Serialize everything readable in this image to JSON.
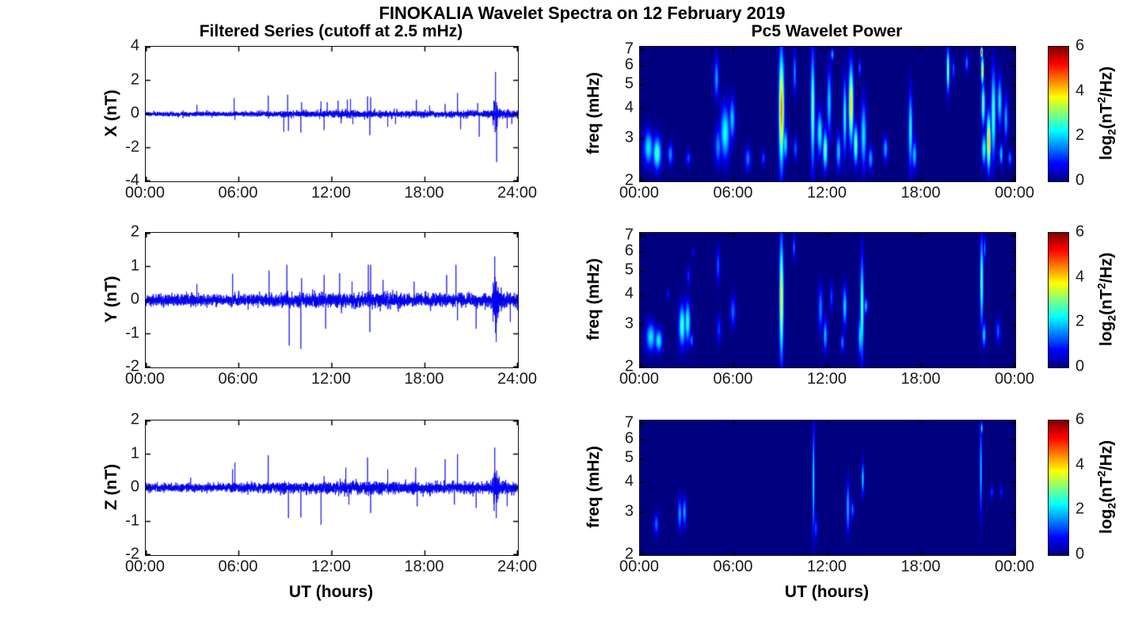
{
  "figure": {
    "title": "FINOKALIA Wavelet Spectra on 12 February 2019",
    "background": "#ffffff"
  },
  "left_column": {
    "title": "Filtered Series (cutoff at 2.5 mHz)",
    "xlabel": "UT (hours)",
    "x_tick_labels": [
      "00:00",
      "06:00",
      "12:00",
      "18:00",
      "24:00"
    ]
  },
  "right_column": {
    "title": "Pc5 Wavelet Power",
    "xlabel": "UT (hours)",
    "ylabel": "freq (mHz)",
    "x_tick_labels": [
      "00:00",
      "06:00",
      "12:00",
      "18:00",
      "00:00"
    ],
    "colorbar": {
      "ticks": [
        0,
        2,
        4,
        6
      ],
      "value_range": [
        0,
        6
      ],
      "label_parts": {
        "pre": "log",
        "sub": "2",
        "mid": "(nT",
        "sup": "2",
        "post": "/Hz)"
      }
    }
  },
  "chart_data": [
    {
      "type": "line",
      "panel": "X filtered series",
      "ylabel": "X (nT)",
      "ylim": [
        -4,
        4
      ],
      "y_ticks": [
        4,
        2,
        0,
        -2,
        -4
      ],
      "x_range_hours": [
        0,
        24
      ],
      "line_color": "#0000EE",
      "seed": 7,
      "noise_std": 0.07,
      "noise_envelope": [
        [
          0,
          0.9
        ],
        [
          4,
          0.95
        ],
        [
          7,
          1.0
        ],
        [
          9,
          1.2
        ],
        [
          11,
          1.3
        ],
        [
          13,
          1.5
        ],
        [
          15,
          1.45
        ],
        [
          17,
          1.2
        ],
        [
          19,
          1.2
        ],
        [
          21,
          1.3
        ],
        [
          22.3,
          1.5
        ],
        [
          22.45,
          6
        ],
        [
          22.6,
          7
        ],
        [
          22.75,
          2
        ],
        [
          23.2,
          1.5
        ],
        [
          24,
          1.5
        ]
      ],
      "spikes": [
        [
          3.3,
          0.55
        ],
        [
          5.7,
          0.95
        ],
        [
          5.75,
          -0.35
        ],
        [
          7.9,
          1.1
        ],
        [
          8.9,
          -1.05
        ],
        [
          9.15,
          1.15
        ],
        [
          9.2,
          -1.0
        ],
        [
          10.0,
          -1.1
        ],
        [
          10.05,
          0.7
        ],
        [
          11.3,
          0.75
        ],
        [
          11.5,
          -0.95
        ],
        [
          11.7,
          0.7
        ],
        [
          12.4,
          0.8
        ],
        [
          12.6,
          -0.55
        ],
        [
          13.0,
          0.85
        ],
        [
          13.2,
          0.9
        ],
        [
          13.35,
          -0.6
        ],
        [
          14.3,
          1.05
        ],
        [
          14.45,
          -1.25
        ],
        [
          14.5,
          1.0
        ],
        [
          15.6,
          -0.75
        ],
        [
          16.1,
          -0.6
        ],
        [
          17.45,
          0.85
        ],
        [
          18.3,
          0.5
        ],
        [
          19.3,
          0.6
        ],
        [
          20.1,
          1.25
        ],
        [
          20.3,
          -0.9
        ],
        [
          21.4,
          0.65
        ],
        [
          21.5,
          -1.35
        ],
        [
          22.55,
          2.5
        ],
        [
          22.62,
          -2.85
        ],
        [
          23.3,
          -0.85
        ],
        [
          23.6,
          -0.6
        ]
      ]
    },
    {
      "type": "line",
      "panel": "Y filtered series",
      "ylabel": "Y (nT)",
      "ylim": [
        -2,
        2
      ],
      "y_ticks": [
        2,
        1,
        0,
        -1,
        -2
      ],
      "x_range_hours": [
        0,
        24
      ],
      "line_color": "#0000EE",
      "seed": 11,
      "noise_std": 0.08,
      "noise_envelope": [
        [
          0,
          1
        ],
        [
          6,
          1
        ],
        [
          9,
          1.15
        ],
        [
          12,
          1.35
        ],
        [
          15,
          1.35
        ],
        [
          18,
          1.15
        ],
        [
          20,
          1.1
        ],
        [
          22.3,
          1.2
        ],
        [
          22.5,
          4
        ],
        [
          22.65,
          4.5
        ],
        [
          22.8,
          1.5
        ],
        [
          24,
          1.25
        ]
      ],
      "spikes": [
        [
          3.3,
          0.48
        ],
        [
          5.6,
          0.78
        ],
        [
          7.95,
          0.88
        ],
        [
          9.1,
          1.05
        ],
        [
          9.25,
          -1.35
        ],
        [
          10.0,
          -1.45
        ],
        [
          10.05,
          0.65
        ],
        [
          11.5,
          0.75
        ],
        [
          11.6,
          -0.85
        ],
        [
          12.5,
          0.8
        ],
        [
          13.3,
          0.55
        ],
        [
          14.35,
          1.05
        ],
        [
          14.45,
          -0.95
        ],
        [
          14.5,
          1.05
        ],
        [
          15.3,
          0.6
        ],
        [
          17.3,
          0.55
        ],
        [
          19.4,
          0.75
        ],
        [
          20.0,
          1.05
        ],
        [
          20.1,
          -0.6
        ],
        [
          21.3,
          -0.85
        ],
        [
          22.5,
          1.3
        ],
        [
          22.6,
          -1.0
        ],
        [
          23.5,
          -0.65
        ]
      ]
    },
    {
      "type": "line",
      "panel": "Z filtered series",
      "ylabel": "Z (nT)",
      "ylim": [
        -2,
        2
      ],
      "y_ticks": [
        2,
        1,
        0,
        -1,
        -2
      ],
      "x_range_hours": [
        0,
        24
      ],
      "line_color": "#0000EE",
      "seed": 13,
      "noise_std": 0.065,
      "noise_envelope": [
        [
          0,
          0.9
        ],
        [
          6,
          1
        ],
        [
          9,
          1.15
        ],
        [
          12,
          1.35
        ],
        [
          15,
          1.4
        ],
        [
          18,
          1.25
        ],
        [
          20,
          1.15
        ],
        [
          22.3,
          1.3
        ],
        [
          22.45,
          3.8
        ],
        [
          22.6,
          4.2
        ],
        [
          22.8,
          1.4
        ],
        [
          24,
          1.2
        ]
      ],
      "spikes": [
        [
          2.9,
          0.3
        ],
        [
          5.6,
          0.55
        ],
        [
          5.75,
          0.75
        ],
        [
          7.9,
          0.97
        ],
        [
          9.2,
          -0.9
        ],
        [
          10.0,
          -0.88
        ],
        [
          11.3,
          -1.1
        ],
        [
          11.5,
          0.35
        ],
        [
          12.9,
          0.6
        ],
        [
          13.1,
          -0.5
        ],
        [
          14.3,
          0.9
        ],
        [
          14.5,
          -0.75
        ],
        [
          15.6,
          0.55
        ],
        [
          17.4,
          0.6
        ],
        [
          17.5,
          -0.55
        ],
        [
          19.3,
          0.85
        ],
        [
          19.9,
          -0.5
        ],
        [
          20.1,
          1.0
        ],
        [
          21.3,
          -0.6
        ],
        [
          22.5,
          1.2
        ],
        [
          22.6,
          -0.9
        ],
        [
          23.3,
          -0.55
        ]
      ]
    },
    {
      "type": "heatmap",
      "panel": "X Pc5 wavelet power",
      "ylabel": "freq (mHz)",
      "f_range_mHz": [
        2,
        7.2
      ],
      "y_ticks": [
        7,
        6,
        5,
        4,
        3,
        2
      ],
      "log_freq_axis": true,
      "value_range": [
        0,
        6
      ],
      "colormap": "jet",
      "blobs": [
        [
          0.55,
          2.3,
          3.3,
          0.5,
          2.2
        ],
        [
          1.1,
          2.2,
          3.1,
          0.45,
          2.7
        ],
        [
          1.95,
          2.3,
          2.9,
          0.3,
          1.6
        ],
        [
          3.1,
          2.3,
          2.7,
          0.25,
          1.2
        ],
        [
          4.9,
          4.3,
          6.6,
          0.25,
          1.7
        ],
        [
          5.0,
          2.3,
          3.4,
          0.35,
          1.6
        ],
        [
          5.45,
          2.4,
          4.2,
          0.5,
          2.4
        ],
        [
          5.9,
          2.9,
          4.5,
          0.3,
          2.0
        ],
        [
          6.9,
          2.2,
          2.8,
          0.3,
          1.5
        ],
        [
          7.9,
          2.3,
          2.7,
          0.2,
          1.2
        ],
        [
          9.05,
          2.2,
          7.1,
          0.28,
          4.6
        ],
        [
          9.3,
          2.4,
          3.4,
          0.25,
          2.2
        ],
        [
          9.9,
          4.5,
          7.0,
          0.18,
          1.6
        ],
        [
          9.95,
          2.4,
          3.1,
          0.2,
          1.3
        ],
        [
          11.05,
          2.2,
          7.15,
          0.22,
          3.0
        ],
        [
          11.5,
          2.5,
          4.0,
          0.3,
          2.4
        ],
        [
          11.85,
          2.2,
          3.3,
          0.25,
          3.0
        ],
        [
          12.1,
          3.0,
          6.0,
          0.25,
          2.0
        ],
        [
          12.3,
          6.3,
          7.1,
          0.15,
          2.0
        ],
        [
          12.7,
          2.2,
          3.2,
          0.25,
          2.0
        ],
        [
          13.1,
          2.5,
          5.5,
          0.2,
          2.4
        ],
        [
          13.5,
          2.8,
          6.2,
          0.25,
          4.1
        ],
        [
          13.8,
          2.3,
          3.5,
          0.25,
          3.0
        ],
        [
          14.05,
          5.4,
          6.4,
          0.15,
          1.4
        ],
        [
          14.3,
          2.2,
          4.4,
          0.3,
          2.2
        ],
        [
          14.75,
          2.2,
          2.8,
          0.25,
          1.8
        ],
        [
          15.7,
          2.4,
          3.1,
          0.25,
          1.8
        ],
        [
          17.3,
          2.2,
          4.8,
          0.22,
          2.4
        ],
        [
          17.55,
          2.2,
          3.0,
          0.25,
          2.0
        ],
        [
          19.7,
          4.6,
          7.15,
          0.16,
          3.2
        ],
        [
          20.05,
          5.2,
          6.5,
          0.15,
          1.3
        ],
        [
          20.9,
          5.6,
          6.8,
          0.18,
          1.5
        ],
        [
          21.85,
          6.5,
          7.15,
          0.12,
          5.7
        ],
        [
          21.9,
          5.0,
          6.6,
          0.15,
          4.2
        ],
        [
          21.95,
          3.3,
          5.2,
          0.2,
          3.0
        ],
        [
          22.0,
          2.3,
          3.2,
          0.25,
          2.5
        ],
        [
          22.3,
          2.2,
          3.9,
          0.22,
          4.3
        ],
        [
          22.6,
          2.4,
          6.0,
          0.25,
          2.8
        ],
        [
          23.0,
          3.3,
          5.5,
          0.25,
          2.2
        ],
        [
          23.1,
          2.3,
          2.9,
          0.2,
          2.0
        ],
        [
          23.4,
          2.9,
          4.5,
          0.22,
          1.8
        ],
        [
          23.65,
          2.3,
          2.7,
          0.2,
          1.5
        ]
      ]
    },
    {
      "type": "heatmap",
      "panel": "Y Pc5 wavelet power",
      "ylabel": "freq (mHz)",
      "f_range_mHz": [
        2,
        7.2
      ],
      "y_ticks": [
        7,
        6,
        5,
        4,
        3,
        2
      ],
      "log_freq_axis": true,
      "value_range": [
        0,
        6
      ],
      "colormap": "jet",
      "blobs": [
        [
          0.7,
          2.3,
          3.1,
          0.5,
          2.2
        ],
        [
          1.2,
          2.3,
          2.9,
          0.4,
          2.3
        ],
        [
          1.8,
          3.8,
          4.3,
          0.15,
          0.9
        ],
        [
          2.7,
          2.4,
          3.7,
          0.35,
          2.7
        ],
        [
          3.05,
          2.5,
          3.8,
          0.3,
          2.5
        ],
        [
          3.3,
          2.4,
          2.8,
          0.2,
          1.5
        ],
        [
          3.1,
          4.3,
          5.3,
          0.2,
          1.0
        ],
        [
          3.4,
          5.7,
          6.3,
          0.12,
          0.9
        ],
        [
          5.0,
          4.4,
          6.3,
          0.2,
          1.3
        ],
        [
          5.05,
          2.5,
          3.3,
          0.25,
          1.1
        ],
        [
          5.95,
          2.9,
          4.0,
          0.28,
          1.4
        ],
        [
          9.05,
          2.1,
          7.1,
          0.22,
          3.9
        ],
        [
          9.85,
          5.5,
          7.1,
          0.15,
          1.4
        ],
        [
          11.55,
          2.8,
          4.4,
          0.25,
          1.6
        ],
        [
          11.85,
          2.3,
          3.2,
          0.22,
          1.9
        ],
        [
          12.25,
          3.4,
          4.5,
          0.18,
          1.2
        ],
        [
          12.95,
          2.3,
          2.8,
          0.2,
          1.5
        ],
        [
          13.1,
          2.9,
          4.4,
          0.22,
          2.1
        ],
        [
          14.1,
          2.2,
          3.3,
          0.25,
          2.2
        ],
        [
          14.2,
          2.1,
          5.9,
          0.2,
          2.9
        ],
        [
          14.45,
          3.3,
          3.9,
          0.18,
          2.0
        ],
        [
          21.85,
          2.9,
          7.1,
          0.18,
          2.9
        ],
        [
          22.05,
          5.5,
          7.0,
          0.12,
          1.6
        ],
        [
          22.0,
          2.4,
          3.1,
          0.2,
          2.1
        ],
        [
          22.9,
          2.5,
          3.2,
          0.25,
          1.3
        ]
      ]
    },
    {
      "type": "heatmap",
      "panel": "Z Pc5 wavelet power",
      "ylabel": "freq (mHz)",
      "f_range_mHz": [
        2,
        7.2
      ],
      "y_ticks": [
        7,
        6,
        5,
        4,
        3,
        2
      ],
      "log_freq_axis": true,
      "value_range": [
        0,
        6
      ],
      "colormap": "jet",
      "blobs": [
        [
          1.05,
          2.4,
          3.0,
          0.25,
          1.4
        ],
        [
          2.55,
          2.5,
          3.5,
          0.22,
          1.7
        ],
        [
          2.85,
          2.6,
          3.5,
          0.2,
          1.8
        ],
        [
          11.1,
          2.3,
          7.15,
          0.13,
          2.2
        ],
        [
          11.25,
          2.3,
          2.9,
          0.15,
          1.3
        ],
        [
          13.3,
          2.4,
          4.1,
          0.18,
          1.9
        ],
        [
          13.6,
          2.8,
          3.4,
          0.15,
          1.5
        ],
        [
          14.25,
          3.5,
          4.9,
          0.14,
          2.1
        ],
        [
          21.8,
          2.8,
          7.15,
          0.13,
          2.0
        ],
        [
          21.85,
          6.3,
          7.1,
          0.1,
          2.6
        ],
        [
          22.5,
          3.4,
          3.9,
          0.15,
          1.2
        ],
        [
          23.1,
          3.4,
          3.9,
          0.12,
          1.0
        ]
      ]
    }
  ]
}
